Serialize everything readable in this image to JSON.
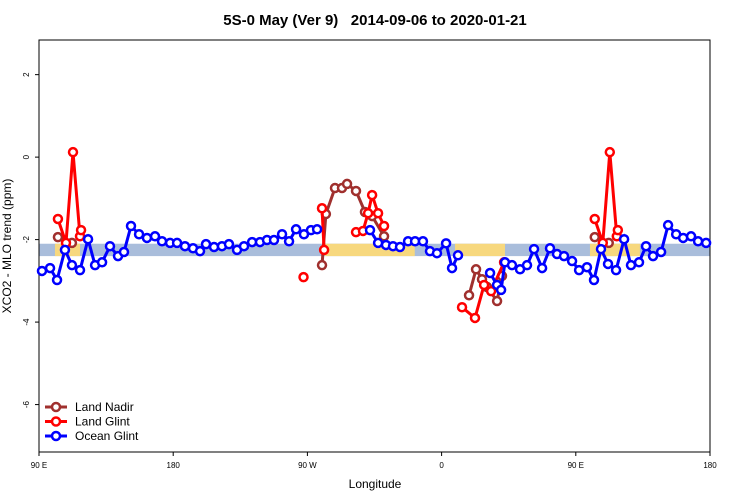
{
  "chart_data": {
    "type": "line",
    "title": "5S-0 May (Ver 9)   2014-09-06 to 2020-01-21",
    "xlabel": "Longitude",
    "ylabel": "XCO2 - MLO trend (ppm)",
    "xlim": [
      90,
      540
    ],
    "ylim": [
      -7.15,
      2.84
    ],
    "xticks": [
      {
        "value": 90,
        "label": "90 E"
      },
      {
        "value": 180,
        "label": "180"
      },
      {
        "value": 270,
        "label": "90 W"
      },
      {
        "value": 360,
        "label": "0"
      },
      {
        "value": 450,
        "label": "90 E"
      },
      {
        "value": 540,
        "label": "180"
      }
    ],
    "yticks": [
      -6,
      -4,
      -2,
      0,
      2
    ],
    "reference_band": {
      "range": [
        -2.4,
        -2.1
      ],
      "color": "#a9bddb"
    },
    "highlight_ranges": {
      "color": "#f7d87e",
      "ranges": [
        [
          100.7,
          117.5
        ],
        [
          281.8,
          342
        ],
        [
          369,
          402.5
        ],
        [
          459.5,
          493
        ]
      ]
    },
    "legend": "bottom-left",
    "series": [
      {
        "name": "Land Nadir",
        "color": "#a0302e",
        "x": [
          102.7,
          112.1,
          200,
          279.8,
          282.4,
          288.5,
          293.2,
          296.6,
          302.6,
          308.6,
          313.4,
          321.4,
          350,
          378.4,
          383.1,
          387.1,
          390.5,
          397.2,
          400.5,
          430,
          462.7,
          472.1
        ],
        "values": [
          -1.94,
          -2.08,
          null,
          -2.62,
          -1.38,
          -0.75,
          -0.75,
          -0.65,
          -0.82,
          -1.33,
          -1.43,
          -1.92,
          null,
          -3.35,
          -2.72,
          -2.96,
          -3.15,
          -3.49,
          -2.88,
          null,
          -1.94,
          -2.08
        ]
      },
      {
        "name": "Land Glint",
        "color": "#ff0000",
        "x": [
          102.7,
          108.1,
          112.8,
          117.5,
          118.2,
          190,
          267.4,
          273,
          279.8,
          281.2,
          292,
          302.6,
          307.3,
          310.7,
          313.4,
          317.4,
          321.4,
          348,
          373.7,
          382.4,
          388.5,
          393.2,
          401.9,
          430,
          462.7,
          468.1,
          472.8,
          477.5,
          478.2
        ],
        "values": [
          -1.5,
          -2.08,
          0.12,
          -1.92,
          -1.77,
          null,
          -2.91,
          null,
          -1.24,
          -2.25,
          null,
          -1.82,
          -1.79,
          -1.36,
          -0.92,
          -1.36,
          -1.67,
          null,
          -3.64,
          -3.9,
          -3.1,
          -3.25,
          -2.55,
          null,
          -1.5,
          -2.08,
          0.12,
          -1.92,
          -1.77
        ]
      },
      {
        "name": "Ocean Glint",
        "color": "#0000ff",
        "x": [
          92.0,
          97.4,
          102.1,
          107.4,
          112.1,
          117.5,
          122.9,
          127.6,
          132.3,
          137.6,
          143.0,
          147.0,
          151.7,
          157.1,
          162.4,
          167.8,
          172.5,
          177.9,
          182.6,
          187.9,
          193.3,
          198.0,
          202.0,
          207.4,
          212.7,
          217.4,
          222.8,
          227.5,
          232.9,
          238.2,
          242.9,
          247.6,
          253.0,
          257.7,
          262.4,
          267.7,
          272.4,
          276.5,
          294,
          312.0,
          317.4,
          322.7,
          327.4,
          332.1,
          337.5,
          342.2,
          347.5,
          352.2,
          356.9,
          363.0,
          367.0,
          371.0,
          382,
          392.5,
          397.2,
          399.9,
          402.5,
          407.2,
          412.6,
          417.3,
          422.0,
          427.4,
          432.7,
          437.4,
          442.1,
          447.5,
          452.2,
          457.5,
          462.2,
          466.9,
          471.6,
          477.0,
          482.4,
          487.0,
          492.4,
          497.1,
          501.8,
          507.2,
          511.9,
          517.3,
          522.0,
          527.3,
          532.0,
          537.4
        ],
        "values": [
          -2.76,
          -2.69,
          -2.98,
          -2.25,
          -2.62,
          -2.74,
          -1.99,
          -2.62,
          -2.55,
          -2.16,
          -2.4,
          -2.3,
          -1.67,
          -1.87,
          -1.96,
          -1.92,
          -2.04,
          -2.08,
          -2.08,
          -2.16,
          -2.21,
          -2.28,
          -2.11,
          -2.18,
          -2.16,
          -2.11,
          -2.25,
          -2.16,
          -2.06,
          -2.06,
          -2.01,
          -2.01,
          -1.87,
          -2.04,
          -1.75,
          -1.87,
          -1.77,
          -1.75,
          null,
          -1.77,
          -2.08,
          -2.13,
          -2.16,
          -2.18,
          -2.04,
          -2.04,
          -2.04,
          -2.28,
          -2.33,
          -2.09,
          -2.69,
          -2.38,
          null,
          -2.81,
          -3.1,
          -3.22,
          -2.55,
          -2.62,
          -2.72,
          -2.62,
          -2.23,
          -2.69,
          -2.21,
          -2.35,
          -2.4,
          -2.52,
          -2.74,
          -2.67,
          -2.98,
          -2.23,
          -2.59,
          -2.74,
          -1.99,
          -2.62,
          -2.55,
          -2.16,
          -2.4,
          -2.3,
          -1.65,
          -1.87,
          -1.96,
          -1.92,
          -2.04,
          -2.08
        ]
      }
    ]
  }
}
